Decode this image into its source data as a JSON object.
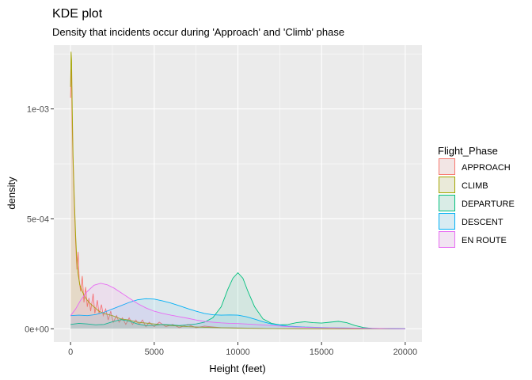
{
  "chart_data": {
    "type": "area",
    "title": "KDE plot",
    "subtitle": "Density that incidents occur during 'Approach' and 'Climb' phase",
    "xlabel": "Height (feet)",
    "ylabel": "density",
    "xlim": [
      -1000,
      21000
    ],
    "ylim": [
      -6e-05,
      0.00129
    ],
    "x_ticks": [
      0,
      5000,
      10000,
      15000,
      20000
    ],
    "x_tick_labels": [
      "0",
      "5000",
      "10000",
      "15000",
      "20000"
    ],
    "y_ticks": [
      0,
      0.0005,
      0.001
    ],
    "y_tick_labels": [
      "0e+00",
      "5e-04",
      "1e-03"
    ],
    "grid": true,
    "legend_position": "right",
    "legend_title": "Flight_Phase",
    "series": [
      {
        "name": "APPROACH",
        "color": "#F8766D",
        "points": [
          [
            0,
            0.00105
          ],
          [
            30,
            0.00118
          ],
          [
            60,
            0.00115
          ],
          [
            100,
            0.00092
          ],
          [
            150,
            0.00075
          ],
          [
            220,
            0.00058
          ],
          [
            300,
            0.0004
          ],
          [
            380,
            0.00027
          ],
          [
            450,
            0.00035
          ],
          [
            520,
            0.00022
          ],
          [
            600,
            0.00017
          ],
          [
            700,
            0.00024
          ],
          [
            800,
            0.00012
          ],
          [
            900,
            0.00019
          ],
          [
            1000,
            0.0001
          ],
          [
            1100,
            0.00014
          ],
          [
            1200,
            8e-05
          ],
          [
            1350,
            0.00016
          ],
          [
            1450,
            7e-05
          ],
          [
            1600,
            0.00013
          ],
          [
            1700,
            7e-05
          ],
          [
            1850,
            0.00011
          ],
          [
            1950,
            6e-05
          ],
          [
            2100,
            9e-05
          ],
          [
            2250,
            4e-05
          ],
          [
            2400,
            8e-05
          ],
          [
            2550,
            3e-05
          ],
          [
            2750,
            6e-05
          ],
          [
            2900,
            3e-05
          ],
          [
            3100,
            5e-05
          ],
          [
            3300,
            2e-05
          ],
          [
            3500,
            5e-05
          ],
          [
            3700,
            2e-05
          ],
          [
            3900,
            4e-05
          ],
          [
            4100,
            2e-05
          ],
          [
            4300,
            4e-05
          ],
          [
            4500,
            1e-05
          ],
          [
            4700,
            3e-05
          ],
          [
            5000,
            1e-05
          ],
          [
            5300,
            3e-05
          ],
          [
            5700,
            1e-05
          ],
          [
            6100,
            2e-05
          ],
          [
            6500,
            5e-06
          ],
          [
            7000,
            2e-05
          ],
          [
            7500,
            5e-06
          ],
          [
            8000,
            1.2e-05
          ],
          [
            9000,
            5e-06
          ],
          [
            10000,
            4e-06
          ],
          [
            12000,
            1e-06
          ],
          [
            14000,
            0.0
          ],
          [
            20000,
            0.0
          ]
        ]
      },
      {
        "name": "CLIMB",
        "color": "#A3A500",
        "points": [
          [
            0,
            0.0011
          ],
          [
            30,
            0.00126
          ],
          [
            60,
            0.00122
          ],
          [
            100,
            0.001
          ],
          [
            150,
            0.00078
          ],
          [
            220,
            0.0006
          ],
          [
            300,
            0.00043
          ],
          [
            380,
            0.0003
          ],
          [
            450,
            0.00025
          ],
          [
            550,
            0.0002
          ],
          [
            700,
            0.00017
          ],
          [
            900,
            0.00014
          ],
          [
            1100,
            0.00012
          ],
          [
            1400,
            0.0001
          ],
          [
            1700,
            8e-05
          ],
          [
            2000,
            7e-05
          ],
          [
            2500,
            6e-05
          ],
          [
            3000,
            4.5e-05
          ],
          [
            3500,
            4e-05
          ],
          [
            4000,
            3e-05
          ],
          [
            5000,
            2.2e-05
          ],
          [
            6000,
            1.5e-05
          ],
          [
            7000,
            1e-05
          ],
          [
            8000,
            7e-06
          ],
          [
            10000,
            3e-06
          ],
          [
            12000,
            1e-06
          ],
          [
            15000,
            0.0
          ],
          [
            20000,
            0.0
          ]
        ]
      },
      {
        "name": "DEPARTURE",
        "color": "#00BF7D",
        "points": [
          [
            0,
            2e-05
          ],
          [
            500,
            2.5e-05
          ],
          [
            1000,
            2.2e-05
          ],
          [
            1500,
            1.8e-05
          ],
          [
            2000,
            2e-05
          ],
          [
            2500,
            3.2e-05
          ],
          [
            3000,
            4.2e-05
          ],
          [
            3500,
            3.5e-05
          ],
          [
            4000,
            2.2e-05
          ],
          [
            4500,
            1.5e-05
          ],
          [
            5000,
            1.6e-05
          ],
          [
            5500,
            2e-05
          ],
          [
            6000,
            1.8e-05
          ],
          [
            6500,
            1.5e-05
          ],
          [
            7000,
            1.8e-05
          ],
          [
            7500,
            2.2e-05
          ],
          [
            8000,
            3e-05
          ],
          [
            8500,
            5e-05
          ],
          [
            9000,
            0.0001
          ],
          [
            9400,
            0.00018
          ],
          [
            9700,
            0.00023
          ],
          [
            10000,
            0.000255
          ],
          [
            10300,
            0.00023
          ],
          [
            10600,
            0.00017
          ],
          [
            11000,
            0.0001
          ],
          [
            11500,
            4.5e-05
          ],
          [
            12000,
            2.5e-05
          ],
          [
            12500,
            1.8e-05
          ],
          [
            13000,
            2e-05
          ],
          [
            13500,
            2.8e-05
          ],
          [
            14000,
            3.2e-05
          ],
          [
            14500,
            2.8e-05
          ],
          [
            15000,
            2.6e-05
          ],
          [
            15500,
            3e-05
          ],
          [
            16000,
            3.4e-05
          ],
          [
            16500,
            2.8e-05
          ],
          [
            17000,
            1.5e-05
          ],
          [
            17500,
            6e-06
          ],
          [
            18000,
            2e-06
          ],
          [
            19000,
            0.0
          ],
          [
            20000,
            0.0
          ]
        ]
      },
      {
        "name": "DESCENT",
        "color": "#00B0F6",
        "points": [
          [
            0,
            6e-05
          ],
          [
            500,
            6.2e-05
          ],
          [
            1000,
            6e-05
          ],
          [
            1500,
            6.5e-05
          ],
          [
            2000,
            7.5e-05
          ],
          [
            2500,
            9e-05
          ],
          [
            3000,
            0.000105
          ],
          [
            3500,
            0.00012
          ],
          [
            4000,
            0.000132
          ],
          [
            4500,
            0.000137
          ],
          [
            5000,
            0.000135
          ],
          [
            5500,
            0.000127
          ],
          [
            6000,
            0.000117
          ],
          [
            6500,
            0.000105
          ],
          [
            7000,
            9.2e-05
          ],
          [
            7500,
            8e-05
          ],
          [
            8000,
            7e-05
          ],
          [
            8500,
            6.4e-05
          ],
          [
            9000,
            6.2e-05
          ],
          [
            9500,
            6.3e-05
          ],
          [
            10000,
            6.2e-05
          ],
          [
            10500,
            5.5e-05
          ],
          [
            11000,
            4.4e-05
          ],
          [
            11500,
            3.2e-05
          ],
          [
            12000,
            2.2e-05
          ],
          [
            13000,
            1.2e-05
          ],
          [
            14000,
            8e-06
          ],
          [
            15000,
            6e-06
          ],
          [
            16000,
            4e-06
          ],
          [
            17000,
            3e-06
          ],
          [
            18000,
            2e-06
          ],
          [
            19000,
            1e-06
          ],
          [
            20000,
            0.0
          ]
        ]
      },
      {
        "name": "EN ROUTE",
        "color": "#E76BF3",
        "points": [
          [
            0,
            6e-05
          ],
          [
            300,
            9e-05
          ],
          [
            600,
            0.00013
          ],
          [
            1000,
            0.00017
          ],
          [
            1400,
            0.000198
          ],
          [
            1800,
            0.000207
          ],
          [
            2200,
            0.0002
          ],
          [
            2600,
            0.000185
          ],
          [
            3000,
            0.000165
          ],
          [
            3500,
            0.00014
          ],
          [
            4000,
            0.000115
          ],
          [
            4500,
            9.5e-05
          ],
          [
            5000,
            8e-05
          ],
          [
            5500,
            7e-05
          ],
          [
            6000,
            6.2e-05
          ],
          [
            6500,
            5.5e-05
          ],
          [
            7000,
            4.8e-05
          ],
          [
            7500,
            4e-05
          ],
          [
            8000,
            3.4e-05
          ],
          [
            8500,
            3e-05
          ],
          [
            9000,
            2.7e-05
          ],
          [
            9500,
            2.5e-05
          ],
          [
            10000,
            2.4e-05
          ],
          [
            11000,
            2e-05
          ],
          [
            12000,
            1.5e-05
          ],
          [
            13000,
            1e-05
          ],
          [
            14000,
            7e-06
          ],
          [
            15000,
            5e-06
          ],
          [
            16000,
            4e-06
          ],
          [
            17000,
            3e-06
          ],
          [
            18000,
            2e-06
          ],
          [
            19000,
            1e-06
          ],
          [
            20000,
            0.0
          ]
        ]
      }
    ]
  }
}
